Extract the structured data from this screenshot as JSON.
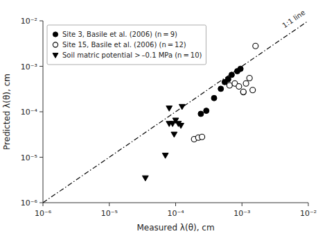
{
  "chart_data": {
    "type": "scatter",
    "xlabel": "Measured λ(θ), cm",
    "ylabel": "Predicted λ(θ), cm",
    "log": true,
    "grid": false,
    "legend": "upper left",
    "xlim": [
      1e-06,
      0.01
    ],
    "ylim": [
      1e-06,
      0.01
    ],
    "xticks": [
      {
        "value": 1e-06,
        "label": "10⁻⁶"
      },
      {
        "value": 1e-05,
        "label": "10⁻⁵"
      },
      {
        "value": 0.0001,
        "label": "10⁻⁴"
      },
      {
        "value": 0.001,
        "label": "10⁻³"
      },
      {
        "value": 0.01,
        "label": "10⁻²"
      }
    ],
    "yticks": [
      {
        "value": 1e-06,
        "label": "10⁻⁶"
      },
      {
        "value": 1e-05,
        "label": "10⁻⁵"
      },
      {
        "value": 0.0001,
        "label": "10⁻⁴"
      },
      {
        "value": 0.001,
        "label": "10⁻³"
      },
      {
        "value": 0.01,
        "label": "10⁻²"
      }
    ],
    "series": [
      {
        "type": "line",
        "line_style": "dash-dot",
        "color": "#000000",
        "x": [
          1e-06,
          0.01
        ],
        "values": [
          1e-06,
          0.01
        ]
      },
      {
        "name": "Site 3, Basile et al. (2006) (n = 9)",
        "type": "scatter",
        "marker": "circle",
        "color": "#000000",
        "x": [
          0.00024,
          0.00029,
          0.00038,
          0.00048,
          0.00055,
          0.00062,
          0.0007,
          0.00085,
          0.00095
        ],
        "values": [
          9e-05,
          0.000105,
          0.0002,
          0.00032,
          0.00045,
          0.00052,
          0.00065,
          0.00078,
          0.00088
        ]
      },
      {
        "name": "Site 15, Basile et al. (2006) (n = 12)",
        "type": "scatter",
        "marker": "open-circle",
        "color": "#000000",
        "x": [
          0.00019,
          0.00022,
          0.00025,
          0.00065,
          0.00078,
          0.0009,
          0.00105,
          0.00105,
          0.00115,
          0.0013,
          0.00145,
          0.0016
        ],
        "values": [
          2.5e-05,
          2.7e-05,
          2.8e-05,
          0.00038,
          0.00042,
          0.00036,
          0.00027,
          0.000275,
          0.00042,
          0.00055,
          0.0003,
          0.0028
        ]
      },
      {
        "name": "Soil matric potential > –0.1 MPa (n = 10)",
        "type": "scatter",
        "marker": "triangle-down",
        "color": "#000000",
        "x": [
          3.5e-05,
          7e-05,
          8e-05,
          9e-05,
          9.5e-05,
          0.0001,
          0.00011,
          0.00012,
          0.000125,
          8e-05
        ],
        "values": [
          3.5e-06,
          1.1e-05,
          5.5e-05,
          5.5e-05,
          3.2e-05,
          6.5e-05,
          5.5e-05,
          5e-05,
          0.00013,
          0.00012
        ]
      }
    ],
    "annotations": [
      {
        "text": "1:1 line",
        "x": 0.0042,
        "y": 0.0075
      }
    ]
  }
}
